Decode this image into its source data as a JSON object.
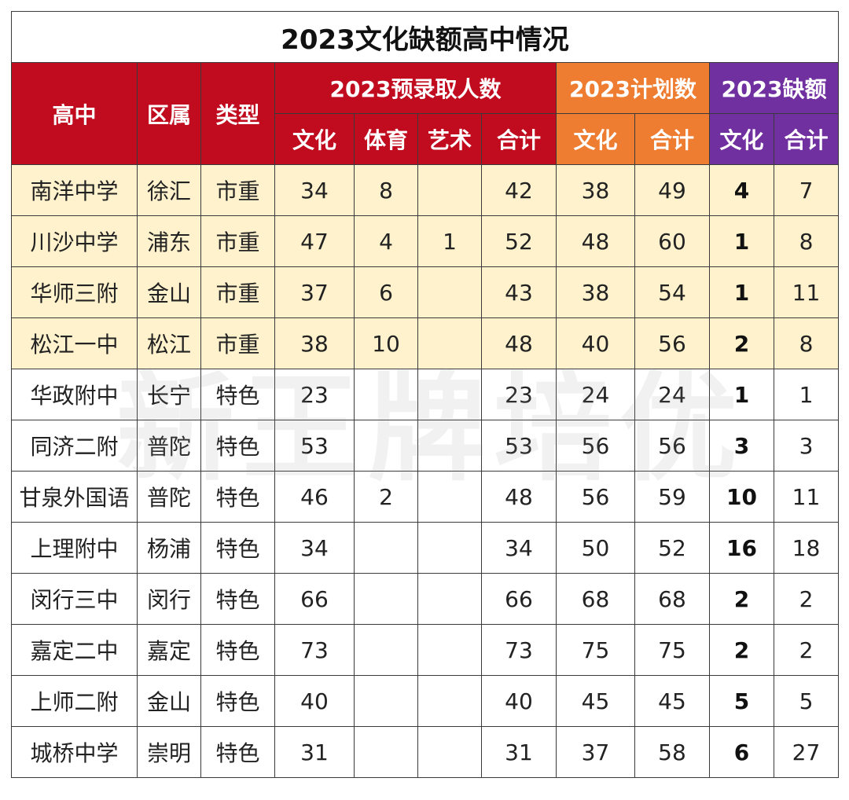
{
  "title": "2023文化缺额高中情况",
  "watermark": "新王牌培优",
  "colors": {
    "red": "#c00c1e",
    "orange": "#ee7d31",
    "purple": "#7030a0",
    "highlight": "#fff2cc"
  },
  "headers": {
    "school": "高中",
    "district": "区属",
    "type": "类型",
    "pre_group": "2023预录取人数",
    "plan_group": "2023计划数",
    "gap_group": "2023缺额",
    "pre_sub": [
      "文化",
      "体育",
      "艺术",
      "合计"
    ],
    "plan_sub": [
      "文化",
      "合计"
    ],
    "gap_sub": [
      "文化",
      "合计"
    ]
  },
  "rows": [
    [
      "南洋中学",
      "徐汇",
      "市重",
      "34",
      "8",
      "",
      "42",
      "38",
      "49",
      "4",
      "7"
    ],
    [
      "川沙中学",
      "浦东",
      "市重",
      "47",
      "4",
      "1",
      "52",
      "48",
      "60",
      "1",
      "8"
    ],
    [
      "华师三附",
      "金山",
      "市重",
      "37",
      "6",
      "",
      "43",
      "38",
      "54",
      "1",
      "11"
    ],
    [
      "松江一中",
      "松江",
      "市重",
      "38",
      "10",
      "",
      "48",
      "40",
      "56",
      "2",
      "8"
    ],
    [
      "华政附中",
      "长宁",
      "特色",
      "23",
      "",
      "",
      "23",
      "24",
      "24",
      "1",
      "1"
    ],
    [
      "同济二附",
      "普陀",
      "特色",
      "53",
      "",
      "",
      "53",
      "56",
      "56",
      "3",
      "3"
    ],
    [
      "甘泉外国语",
      "普陀",
      "特色",
      "46",
      "2",
      "",
      "48",
      "56",
      "59",
      "10",
      "11"
    ],
    [
      "上理附中",
      "杨浦",
      "特色",
      "34",
      "",
      "",
      "34",
      "50",
      "52",
      "16",
      "18"
    ],
    [
      "闵行三中",
      "闵行",
      "特色",
      "66",
      "",
      "",
      "66",
      "68",
      "68",
      "2",
      "2"
    ],
    [
      "嘉定二中",
      "嘉定",
      "特色",
      "73",
      "",
      "",
      "73",
      "75",
      "75",
      "2",
      "2"
    ],
    [
      "上师二附",
      "金山",
      "特色",
      "40",
      "",
      "",
      "40",
      "45",
      "45",
      "5",
      "5"
    ],
    [
      "城桥中学",
      "崇明",
      "特色",
      "31",
      "",
      "",
      "31",
      "37",
      "58",
      "6",
      "27"
    ]
  ]
}
